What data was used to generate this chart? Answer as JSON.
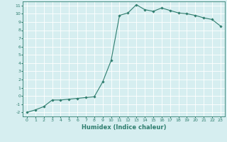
{
  "x": [
    0,
    1,
    2,
    3,
    4,
    5,
    6,
    7,
    8,
    9,
    10,
    11,
    12,
    13,
    14,
    15,
    16,
    17,
    18,
    19,
    20,
    21,
    22,
    23
  ],
  "y": [
    -2,
    -1.7,
    -1.3,
    -0.5,
    -0.5,
    -0.4,
    -0.3,
    -0.2,
    -0.1,
    1.7,
    4.3,
    9.8,
    10.1,
    11.1,
    10.5,
    10.3,
    10.7,
    10.4,
    10.1,
    10.0,
    9.8,
    9.5,
    9.3,
    8.5
  ],
  "line_color": "#2e7d6e",
  "marker": "D",
  "marker_size": 1.8,
  "bg_color": "#d6eef0",
  "grid_color": "#ffffff",
  "xlabel": "Humidex (Indice chaleur)",
  "xlim": [
    -0.5,
    23.5
  ],
  "ylim": [
    -2.5,
    11.5
  ],
  "yticks": [
    -2,
    -1,
    0,
    1,
    2,
    3,
    4,
    5,
    6,
    7,
    8,
    9,
    10,
    11
  ],
  "xticks": [
    0,
    1,
    2,
    3,
    4,
    5,
    6,
    7,
    8,
    9,
    10,
    11,
    12,
    13,
    14,
    15,
    16,
    17,
    18,
    19,
    20,
    21,
    22,
    23
  ],
  "tick_fontsize": 4.5,
  "xlabel_fontsize": 6.0,
  "line_width": 0.8
}
